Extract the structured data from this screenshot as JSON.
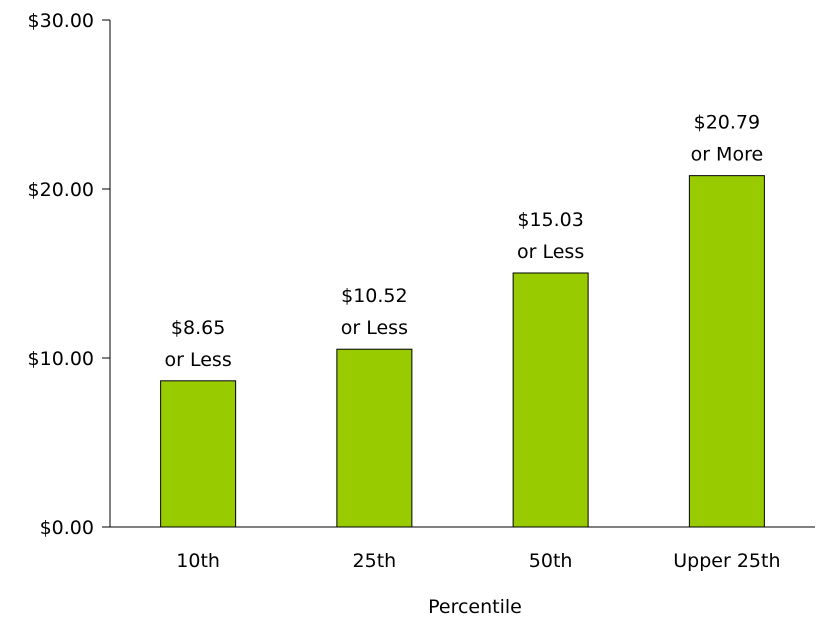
{
  "chart_data": {
    "type": "bar",
    "categories": [
      "10th",
      "25th",
      "50th",
      "Upper 25th"
    ],
    "values": [
      8.65,
      10.52,
      15.03,
      20.79
    ],
    "data_labels": [
      [
        "$8.65",
        "or Less"
      ],
      [
        "$10.52",
        "or Less"
      ],
      [
        "$15.03",
        "or Less"
      ],
      [
        "$20.79",
        "or More"
      ]
    ],
    "y_ticks": [
      0,
      10,
      20,
      30
    ],
    "y_tick_labels": [
      "$0.00",
      "$10.00",
      "$20.00",
      "$30.00"
    ],
    "ylim": [
      0,
      30
    ],
    "xlabel": "Percentile",
    "ylabel": "",
    "title": "",
    "bar_color": "#99CC00",
    "bar_outline_color": "#000000",
    "grid": false,
    "legend": false
  }
}
